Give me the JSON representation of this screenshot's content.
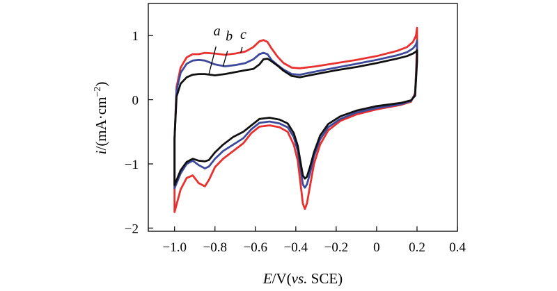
{
  "chart_data": {
    "type": "line",
    "title": "",
    "xlabel": {
      "symbol": "E",
      "unit": "/V(",
      "ref_italic": "vs.",
      "ref": " SCE)"
    },
    "ylabel": {
      "symbol": "i",
      "unit_prefix": "/(mA·cm",
      "unit_exp": "−2",
      "unit_suffix": ")"
    },
    "xlim": [
      -1.13,
      0.4
    ],
    "ylim": [
      -2.05,
      1.5
    ],
    "xticks": [
      {
        "value": -1.0,
        "label": "−1.0"
      },
      {
        "value": -0.8,
        "label": "−0.8"
      },
      {
        "value": -0.6,
        "label": "−0.6"
      },
      {
        "value": -0.4,
        "label": "−0.4"
      },
      {
        "value": -0.2,
        "label": "−0.2"
      },
      {
        "value": 0.0,
        "label": "0"
      },
      {
        "value": 0.2,
        "label": "0.2"
      },
      {
        "value": 0.4,
        "label": "0.4"
      }
    ],
    "yticks": [
      {
        "value": 1,
        "label": "1"
      },
      {
        "value": 0,
        "label": "0"
      },
      {
        "value": -1,
        "label": "−1"
      },
      {
        "value": -2,
        "label": "−2"
      }
    ],
    "grid": false,
    "series": [
      {
        "name": "c",
        "color": "#e8302e",
        "points": [
          [
            -1.0,
            -1.75
          ],
          [
            -1.0,
            -0.6
          ],
          [
            -0.99,
            0.2
          ],
          [
            -0.97,
            0.5
          ],
          [
            -0.94,
            0.66
          ],
          [
            -0.91,
            0.71
          ],
          [
            -0.88,
            0.71
          ],
          [
            -0.85,
            0.73
          ],
          [
            -0.8,
            0.72
          ],
          [
            -0.75,
            0.7
          ],
          [
            -0.7,
            0.72
          ],
          [
            -0.65,
            0.75
          ],
          [
            -0.61,
            0.82
          ],
          [
            -0.58,
            0.91
          ],
          [
            -0.56,
            0.93
          ],
          [
            -0.54,
            0.9
          ],
          [
            -0.52,
            0.8
          ],
          [
            -0.49,
            0.67
          ],
          [
            -0.46,
            0.57
          ],
          [
            -0.42,
            0.5
          ],
          [
            -0.38,
            0.49
          ],
          [
            -0.3,
            0.52
          ],
          [
            -0.2,
            0.57
          ],
          [
            -0.1,
            0.62
          ],
          [
            0.0,
            0.68
          ],
          [
            0.1,
            0.76
          ],
          [
            0.15,
            0.82
          ],
          [
            0.18,
            0.9
          ],
          [
            0.195,
            1.0
          ],
          [
            0.2,
            1.12
          ],
          [
            0.2,
            0.9
          ],
          [
            0.195,
            0.4
          ],
          [
            0.19,
            0.1
          ],
          [
            0.17,
            -0.03
          ],
          [
            0.12,
            -0.08
          ],
          [
            0.0,
            -0.15
          ],
          [
            -0.1,
            -0.23
          ],
          [
            -0.18,
            -0.33
          ],
          [
            -0.24,
            -0.48
          ],
          [
            -0.28,
            -0.7
          ],
          [
            -0.31,
            -1.0
          ],
          [
            -0.33,
            -1.35
          ],
          [
            -0.345,
            -1.62
          ],
          [
            -0.355,
            -1.7
          ],
          [
            -0.365,
            -1.62
          ],
          [
            -0.375,
            -1.35
          ],
          [
            -0.39,
            -0.95
          ],
          [
            -0.41,
            -0.7
          ],
          [
            -0.44,
            -0.5
          ],
          [
            -0.48,
            -0.43
          ],
          [
            -0.53,
            -0.4
          ],
          [
            -0.58,
            -0.42
          ],
          [
            -0.62,
            -0.52
          ],
          [
            -0.66,
            -0.68
          ],
          [
            -0.71,
            -0.8
          ],
          [
            -0.76,
            -0.92
          ],
          [
            -0.8,
            -1.05
          ],
          [
            -0.83,
            -1.25
          ],
          [
            -0.85,
            -1.35
          ],
          [
            -0.88,
            -1.3
          ],
          [
            -0.91,
            -1.18
          ],
          [
            -0.94,
            -1.22
          ],
          [
            -0.97,
            -1.4
          ],
          [
            -1.0,
            -1.75
          ]
        ]
      },
      {
        "name": "b",
        "color": "#3d4a9b",
        "points": [
          [
            -1.0,
            -1.38
          ],
          [
            -1.0,
            -0.6
          ],
          [
            -0.99,
            0.15
          ],
          [
            -0.97,
            0.42
          ],
          [
            -0.94,
            0.56
          ],
          [
            -0.91,
            0.61
          ],
          [
            -0.88,
            0.62
          ],
          [
            -0.85,
            0.61
          ],
          [
            -0.8,
            0.55
          ],
          [
            -0.75,
            0.52
          ],
          [
            -0.7,
            0.54
          ],
          [
            -0.65,
            0.57
          ],
          [
            -0.61,
            0.63
          ],
          [
            -0.58,
            0.71
          ],
          [
            -0.56,
            0.73
          ],
          [
            -0.54,
            0.71
          ],
          [
            -0.52,
            0.62
          ],
          [
            -0.49,
            0.54
          ],
          [
            -0.46,
            0.47
          ],
          [
            -0.42,
            0.4
          ],
          [
            -0.38,
            0.39
          ],
          [
            -0.3,
            0.44
          ],
          [
            -0.2,
            0.5
          ],
          [
            -0.1,
            0.56
          ],
          [
            0.0,
            0.62
          ],
          [
            0.1,
            0.69
          ],
          [
            0.15,
            0.74
          ],
          [
            0.18,
            0.8
          ],
          [
            0.195,
            0.86
          ],
          [
            0.2,
            0.92
          ],
          [
            0.2,
            0.7
          ],
          [
            0.195,
            0.35
          ],
          [
            0.19,
            0.08
          ],
          [
            0.17,
            -0.02
          ],
          [
            0.12,
            -0.07
          ],
          [
            0.0,
            -0.13
          ],
          [
            -0.1,
            -0.2
          ],
          [
            -0.18,
            -0.3
          ],
          [
            -0.24,
            -0.43
          ],
          [
            -0.28,
            -0.62
          ],
          [
            -0.31,
            -0.88
          ],
          [
            -0.33,
            -1.15
          ],
          [
            -0.345,
            -1.32
          ],
          [
            -0.355,
            -1.37
          ],
          [
            -0.365,
            -1.32
          ],
          [
            -0.375,
            -1.1
          ],
          [
            -0.39,
            -0.8
          ],
          [
            -0.41,
            -0.58
          ],
          [
            -0.44,
            -0.43
          ],
          [
            -0.48,
            -0.37
          ],
          [
            -0.53,
            -0.34
          ],
          [
            -0.58,
            -0.36
          ],
          [
            -0.62,
            -0.46
          ],
          [
            -0.66,
            -0.6
          ],
          [
            -0.71,
            -0.7
          ],
          [
            -0.76,
            -0.8
          ],
          [
            -0.8,
            -0.92
          ],
          [
            -0.83,
            -1.04
          ],
          [
            -0.85,
            -1.07
          ],
          [
            -0.88,
            -1.02
          ],
          [
            -0.91,
            -0.95
          ],
          [
            -0.94,
            -1.0
          ],
          [
            -0.97,
            -1.15
          ],
          [
            -1.0,
            -1.38
          ]
        ]
      },
      {
        "name": "a",
        "color": "#111111",
        "points": [
          [
            -1.0,
            -1.33
          ],
          [
            -1.0,
            -0.6
          ],
          [
            -0.99,
            0.05
          ],
          [
            -0.97,
            0.25
          ],
          [
            -0.94,
            0.35
          ],
          [
            -0.91,
            0.39
          ],
          [
            -0.88,
            0.4
          ],
          [
            -0.85,
            0.4
          ],
          [
            -0.8,
            0.38
          ],
          [
            -0.75,
            0.4
          ],
          [
            -0.7,
            0.43
          ],
          [
            -0.65,
            0.46
          ],
          [
            -0.61,
            0.48
          ],
          [
            -0.58,
            0.55
          ],
          [
            -0.56,
            0.63
          ],
          [
            -0.54,
            0.64
          ],
          [
            -0.52,
            0.6
          ],
          [
            -0.49,
            0.53
          ],
          [
            -0.46,
            0.45
          ],
          [
            -0.42,
            0.37
          ],
          [
            -0.38,
            0.35
          ],
          [
            -0.3,
            0.4
          ],
          [
            -0.2,
            0.46
          ],
          [
            -0.1,
            0.51
          ],
          [
            0.0,
            0.57
          ],
          [
            0.1,
            0.64
          ],
          [
            0.15,
            0.68
          ],
          [
            0.18,
            0.72
          ],
          [
            0.195,
            0.75
          ],
          [
            0.2,
            0.77
          ],
          [
            0.2,
            0.6
          ],
          [
            0.195,
            0.3
          ],
          [
            0.19,
            0.06
          ],
          [
            0.17,
            -0.01
          ],
          [
            0.12,
            -0.05
          ],
          [
            0.0,
            -0.1
          ],
          [
            -0.1,
            -0.17
          ],
          [
            -0.18,
            -0.26
          ],
          [
            -0.24,
            -0.38
          ],
          [
            -0.28,
            -0.56
          ],
          [
            -0.31,
            -0.82
          ],
          [
            -0.33,
            -1.05
          ],
          [
            -0.345,
            -1.2
          ],
          [
            -0.355,
            -1.23
          ],
          [
            -0.365,
            -1.18
          ],
          [
            -0.375,
            -1.0
          ],
          [
            -0.39,
            -0.72
          ],
          [
            -0.41,
            -0.52
          ],
          [
            -0.44,
            -0.37
          ],
          [
            -0.48,
            -0.31
          ],
          [
            -0.53,
            -0.28
          ],
          [
            -0.58,
            -0.3
          ],
          [
            -0.62,
            -0.4
          ],
          [
            -0.66,
            -0.5
          ],
          [
            -0.71,
            -0.58
          ],
          [
            -0.76,
            -0.7
          ],
          [
            -0.8,
            -0.82
          ],
          [
            -0.83,
            -0.94
          ],
          [
            -0.85,
            -0.96
          ],
          [
            -0.88,
            -0.95
          ],
          [
            -0.91,
            -0.92
          ],
          [
            -0.94,
            -0.97
          ],
          [
            -0.97,
            -1.1
          ],
          [
            -1.0,
            -1.33
          ]
        ]
      }
    ],
    "annotations": [
      {
        "text": "a",
        "series": "a",
        "text_at": [
          -0.79,
          1.0
        ],
        "line_from": [
          -0.795,
          0.83
        ],
        "line_to": [
          -0.83,
          0.4
        ]
      },
      {
        "text": "b",
        "series": "b",
        "text_at": [
          -0.73,
          0.92
        ],
        "line_from": [
          -0.738,
          0.76
        ],
        "line_to": [
          -0.76,
          0.52
        ]
      },
      {
        "text": "c",
        "series": "c",
        "text_at": [
          -0.66,
          0.95
        ],
        "line_from": [
          -0.665,
          0.82
        ],
        "line_to": [
          -0.673,
          0.73
        ]
      }
    ]
  }
}
